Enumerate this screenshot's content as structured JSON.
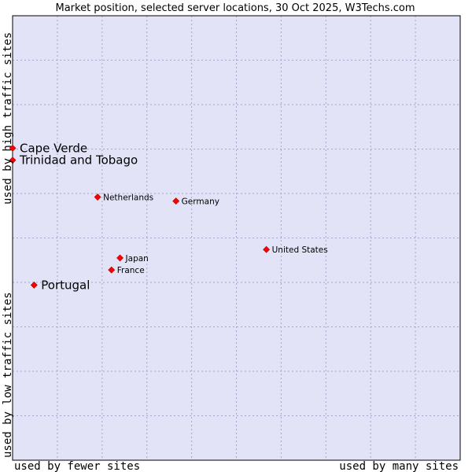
{
  "chart_data": {
    "type": "scatter",
    "title": "Market position, selected server locations, 30 Oct 2025, W3Techs.com",
    "xlabel_left": "used by fewer sites",
    "xlabel_right": "used by many sites",
    "ylabel_bottom": "used by low traffic sites",
    "ylabel_top": "used by high traffic sites",
    "xlim": [
      0,
      100
    ],
    "ylim": [
      0,
      100
    ],
    "grid": true,
    "colors": {
      "plot_bg": "#e3e3f7",
      "grid": "#a6a6cc",
      "marker": "#ff0000",
      "marker_edge": "#aa0000"
    },
    "points": [
      {
        "name": "Cape Verde",
        "x": 0,
        "y": 70.2,
        "highlight": true
      },
      {
        "name": "Trinidad and Tobago",
        "x": 0,
        "y": 67.5,
        "highlight": true
      },
      {
        "name": "Netherlands",
        "x": 19.0,
        "y": 59.2,
        "highlight": false
      },
      {
        "name": "Germany",
        "x": 36.5,
        "y": 58.3,
        "highlight": false
      },
      {
        "name": "United States",
        "x": 56.7,
        "y": 47.4,
        "highlight": false
      },
      {
        "name": "Japan",
        "x": 24.0,
        "y": 45.5,
        "highlight": false
      },
      {
        "name": "France",
        "x": 22.1,
        "y": 42.8,
        "highlight": false
      },
      {
        "name": "Portugal",
        "x": 4.8,
        "y": 39.4,
        "highlight": true
      }
    ]
  }
}
